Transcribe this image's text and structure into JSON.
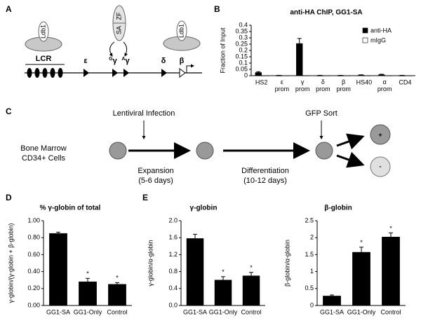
{
  "panel_labels": [
    "A",
    "B",
    "C",
    "D",
    "E"
  ],
  "diagram_a": {
    "proteins": [
      "Ldb1",
      "ZF",
      "SA",
      "Ldb1"
    ],
    "region": "LCR",
    "genes": [
      {
        "base": "ε"
      },
      {
        "sup": "G",
        "base": "γ"
      },
      {
        "sup": "A",
        "base": "γ"
      },
      {
        "base": "δ"
      },
      {
        "base": "β"
      }
    ]
  },
  "diagram_c": {
    "steps": [
      "Lentiviral Infection",
      "GFP Sort"
    ],
    "source": [
      "Bone Marrow",
      "CD34+ Cells"
    ],
    "stages": [
      {
        "name": "Expansion",
        "duration": "(5-6 days)"
      },
      {
        "name": "Differentiation",
        "duration": "(10-12 days)"
      }
    ],
    "outcomes": [
      "+",
      "-"
    ]
  },
  "chart_data": [
    {
      "type": "bar",
      "title": "anti-HA ChIP, GG1-SA",
      "ylabel": "Fraction of Input",
      "categories": [
        "HS2",
        "ε prom",
        "γ prom",
        "δ prom",
        "β prom",
        "HS40",
        "α prom",
        "CD4"
      ],
      "series": [
        {
          "name": "anti-HA",
          "color": "#000000",
          "values": [
            0.025,
            0.002,
            0.255,
            0.002,
            0.002,
            0.005,
            0.008,
            0.002
          ],
          "errors": [
            0.006,
            0.001,
            0.04,
            0.001,
            0.001,
            0.002,
            0.003,
            0.001
          ]
        },
        {
          "name": "mIgG",
          "color": "#ffffff",
          "values": [
            0.001,
            0.001,
            0.001,
            0.001,
            0.001,
            0.001,
            0.001,
            0.001
          ]
        }
      ],
      "ylim": [
        0,
        0.4
      ],
      "yticks": [
        0,
        0.05,
        0.1,
        0.15,
        0.2,
        0.25,
        0.3,
        0.35,
        0.4
      ],
      "legend": "top-right"
    },
    {
      "type": "bar",
      "title": "% γ-globin of total",
      "ylabel": "γ-globin/(γ-globin + β-globin)",
      "categories": [
        "GG1-SA",
        "GG1-Only",
        "Control"
      ],
      "series": [
        {
          "name": "γ-globin fraction",
          "color": "#000000",
          "values": [
            0.85,
            0.28,
            0.25
          ],
          "errors": [
            0.015,
            0.04,
            0.02
          ]
        }
      ],
      "annotations": [
        null,
        "*",
        "*"
      ],
      "ylim": [
        0,
        1
      ],
      "yticks": [
        {
          "value": 0,
          "label": "0.00"
        },
        {
          "value": 0.2,
          "label": "0.20"
        },
        {
          "value": 0.4,
          "label": "0.40"
        },
        {
          "value": 0.6,
          "label": "0.60"
        },
        {
          "value": 0.8,
          "label": "0.80"
        },
        {
          "value": 1,
          "label": "1.00"
        }
      ]
    },
    {
      "type": "bar",
      "title": "γ-globin",
      "ylabel": "γ-globin/α-globin",
      "categories": [
        "GG1-SA",
        "GG1-Only",
        "Control"
      ],
      "series": [
        {
          "name": "γ-globin",
          "color": "#000000",
          "values": [
            1.58,
            0.6,
            0.7
          ],
          "errors": [
            0.1,
            0.08,
            0.08
          ]
        }
      ],
      "annotations": [
        null,
        "*",
        "*"
      ],
      "ylim": [
        0,
        2
      ],
      "yticks": [
        {
          "value": 0,
          "label": "0.0"
        },
        0.4,
        0.8,
        1.2,
        1.6,
        {
          "value": 2,
          "label": "2.0"
        }
      ]
    },
    {
      "type": "bar",
      "title": "β-globin",
      "ylabel": "β-globin/α-globin",
      "categories": [
        "GG1-SA",
        "GG1-Only",
        "Control"
      ],
      "series": [
        {
          "name": "β-globin",
          "color": "#000000",
          "values": [
            0.28,
            1.57,
            2.02
          ],
          "errors": [
            0.03,
            0.15,
            0.12
          ]
        }
      ],
      "annotations": [
        null,
        "*",
        "*"
      ],
      "ylim": [
        0,
        2.5
      ],
      "yticks": [
        0,
        0.5,
        1,
        1.5,
        2,
        2.5
      ]
    }
  ]
}
